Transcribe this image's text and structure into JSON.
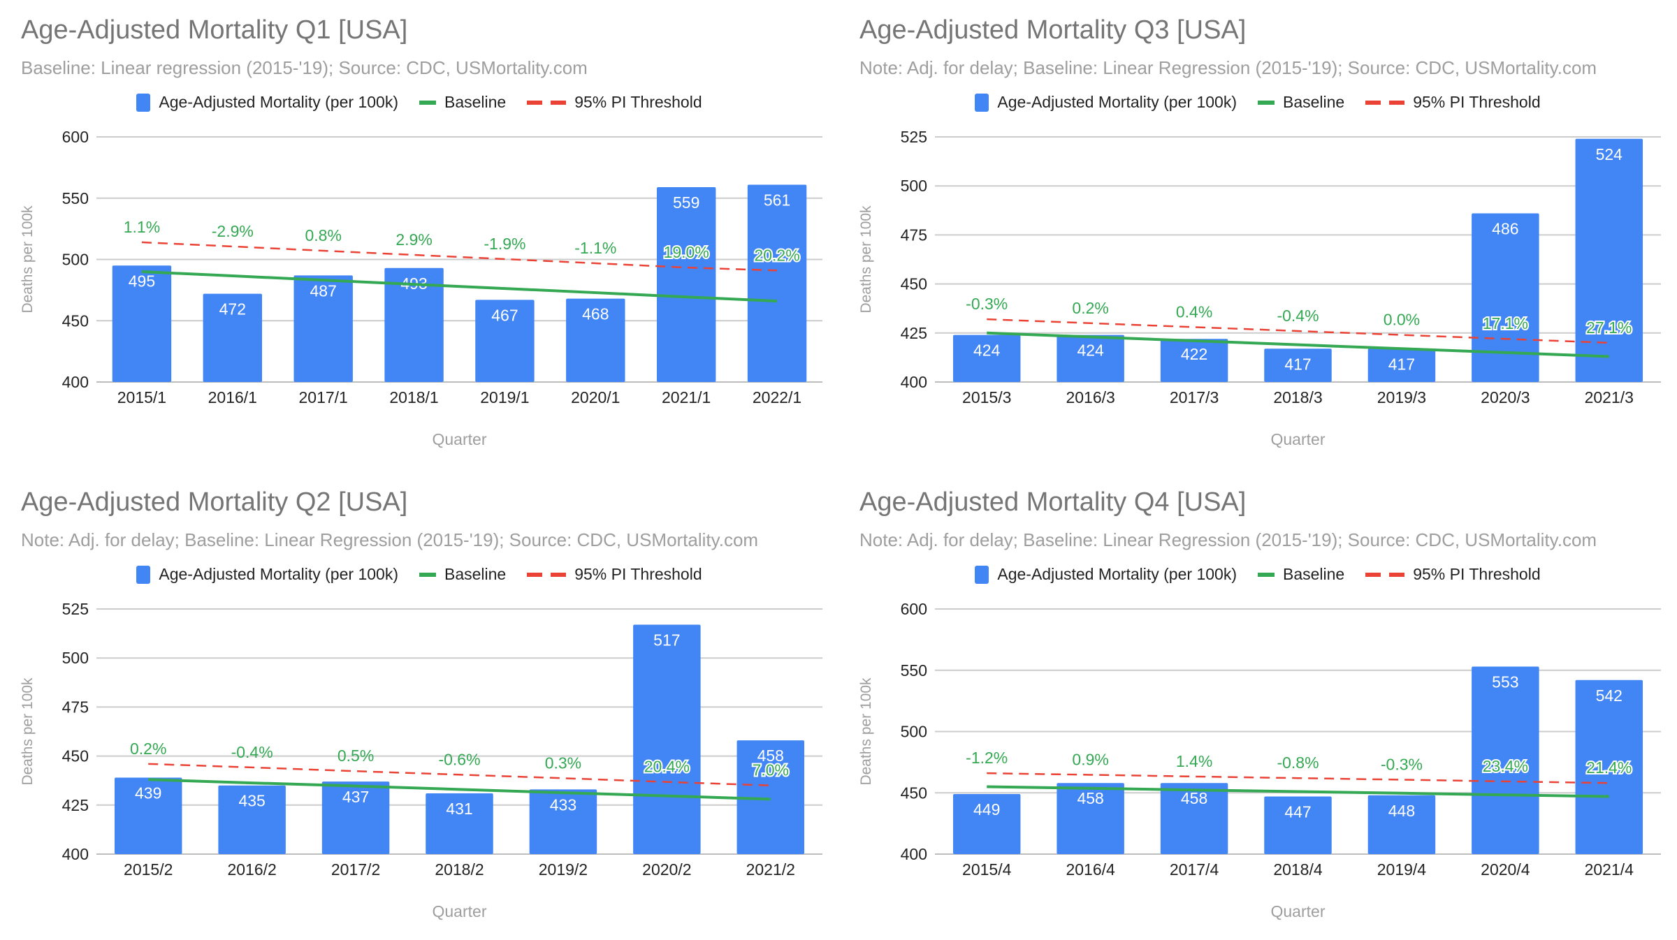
{
  "colors": {
    "bar": "#4285f4",
    "baseline": "#34a853",
    "threshold": "#ea4335",
    "grid": "#cccccc",
    "pct": "#34a853"
  },
  "legend": {
    "bars": "Age-Adjusted Mortality (per 100k)",
    "baseline": "Baseline",
    "threshold": "95% PI Threshold"
  },
  "chart_data": [
    {
      "type": "bar",
      "title": "Age-Adjusted Mortality Q1 [USA]",
      "subtitle": "Baseline: Linear regression (2015-'19); Source: CDC, USMortality.com",
      "xlabel": "Quarter",
      "ylabel": "Deaths per 100k",
      "ylim": [
        400,
        600
      ],
      "yticks": [
        "400",
        "450",
        "500",
        "550",
        "600"
      ],
      "categories": [
        "2015/1",
        "2016/1",
        "2017/1",
        "2018/1",
        "2019/1",
        "2020/1",
        "2021/1",
        "2022/1"
      ],
      "values": [
        495,
        472,
        487,
        493,
        467,
        468,
        559,
        561
      ],
      "value_labels": [
        "495",
        "472",
        "487",
        "493",
        "467",
        "468",
        "559",
        "561"
      ],
      "baseline": [
        490,
        486.6,
        483.1,
        479.7,
        476.3,
        472.9,
        469.4,
        466
      ],
      "threshold": [
        514,
        510.6,
        507.1,
        503.7,
        500.3,
        496.9,
        493.4,
        491
      ],
      "pct_labels": [
        "1.1%",
        "-2.9%",
        "0.8%",
        "2.9%",
        "-1.9%",
        "-1.1%",
        "19.0%",
        "20.2%"
      ]
    },
    {
      "type": "bar",
      "title": "Age-Adjusted Mortality Q3 [USA]",
      "subtitle": "Note: Adj. for delay; Baseline: Linear Regression (2015-'19); Source: CDC, USMortality.com",
      "xlabel": "Quarter",
      "ylabel": "Deaths per 100k",
      "ylim": [
        400,
        525
      ],
      "yticks": [
        "400",
        "425",
        "450",
        "475",
        "500",
        "525"
      ],
      "categories": [
        "2015/3",
        "2016/3",
        "2017/3",
        "2018/3",
        "2019/3",
        "2020/3",
        "2021/3"
      ],
      "values": [
        424,
        424,
        422,
        417,
        417,
        486,
        524
      ],
      "value_labels": [
        "424",
        "424",
        "422",
        "417",
        "417",
        "486",
        "524"
      ],
      "baseline": [
        425,
        423,
        421,
        419,
        417,
        415,
        413
      ],
      "threshold": [
        432,
        430,
        428,
        426,
        424,
        422,
        420
      ],
      "pct_labels": [
        "-0.3%",
        "0.2%",
        "0.4%",
        "-0.4%",
        "0.0%",
        "17.1%",
        "27.1%"
      ]
    },
    {
      "type": "bar",
      "title": "Age-Adjusted Mortality Q2 [USA]",
      "subtitle": "Note: Adj. for delay; Baseline: Linear Regression (2015-'19); Source: CDC, USMortality.com",
      "xlabel": "Quarter",
      "ylabel": "Deaths per 100k",
      "ylim": [
        400,
        525
      ],
      "yticks": [
        "400",
        "425",
        "450",
        "475",
        "500",
        "525"
      ],
      "categories": [
        "2015/2",
        "2016/2",
        "2017/2",
        "2018/2",
        "2019/2",
        "2020/2",
        "2021/2"
      ],
      "values": [
        439,
        435,
        437,
        431,
        433,
        517,
        458
      ],
      "value_labels": [
        "439",
        "435",
        "437",
        "431",
        "433",
        "517",
        "458"
      ],
      "baseline": [
        438,
        436.3,
        434.7,
        433,
        431.3,
        429.7,
        428
      ],
      "threshold": [
        446,
        444.2,
        442.3,
        440.5,
        438.7,
        436.8,
        435
      ],
      "pct_labels": [
        "0.2%",
        "-0.4%",
        "0.5%",
        "-0.6%",
        "0.3%",
        "20.4%",
        "7.0%"
      ]
    },
    {
      "type": "bar",
      "title": "Age-Adjusted Mortality Q4 [USA]",
      "subtitle": "Note: Adj. for delay; Baseline: Linear Regression (2015-'19); Source: CDC, USMortality.com",
      "xlabel": "Quarter",
      "ylabel": "Deaths per 100k",
      "ylim": [
        400,
        600
      ],
      "yticks": [
        "400",
        "450",
        "500",
        "550",
        "600"
      ],
      "categories": [
        "2015/4",
        "2016/4",
        "2017/4",
        "2018/4",
        "2019/4",
        "2020/4",
        "2021/4"
      ],
      "values": [
        449,
        458,
        458,
        447,
        448,
        553,
        542
      ],
      "value_labels": [
        "449",
        "458",
        "458",
        "447",
        "448",
        "553",
        "542"
      ],
      "baseline": [
        455,
        453.7,
        452.3,
        451,
        449.7,
        448.3,
        447
      ],
      "threshold": [
        466,
        464.7,
        463.3,
        462,
        460.7,
        459.3,
        458
      ],
      "pct_labels": [
        "-1.2%",
        "0.9%",
        "1.4%",
        "-0.8%",
        "-0.3%",
        "23.4%",
        "21.4%"
      ]
    }
  ]
}
